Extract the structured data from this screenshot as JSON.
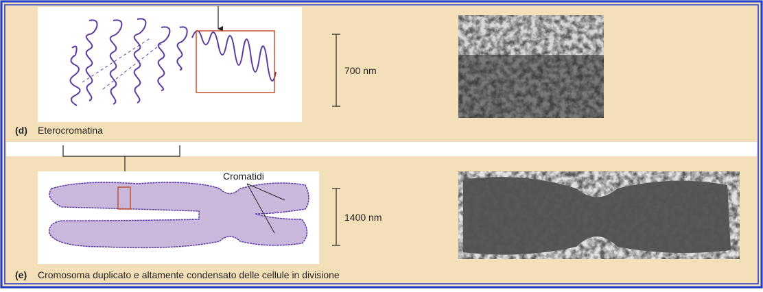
{
  "panels": [
    {
      "scale": "700 nm",
      "letter": "(d)",
      "caption": "Eterocromatina"
    },
    {
      "scale": "1400 nm",
      "label": "Cromatidi",
      "letter": "(e)",
      "caption": "Cromosoma duplicato e altamente condensato delle cellule in divisione"
    }
  ]
}
